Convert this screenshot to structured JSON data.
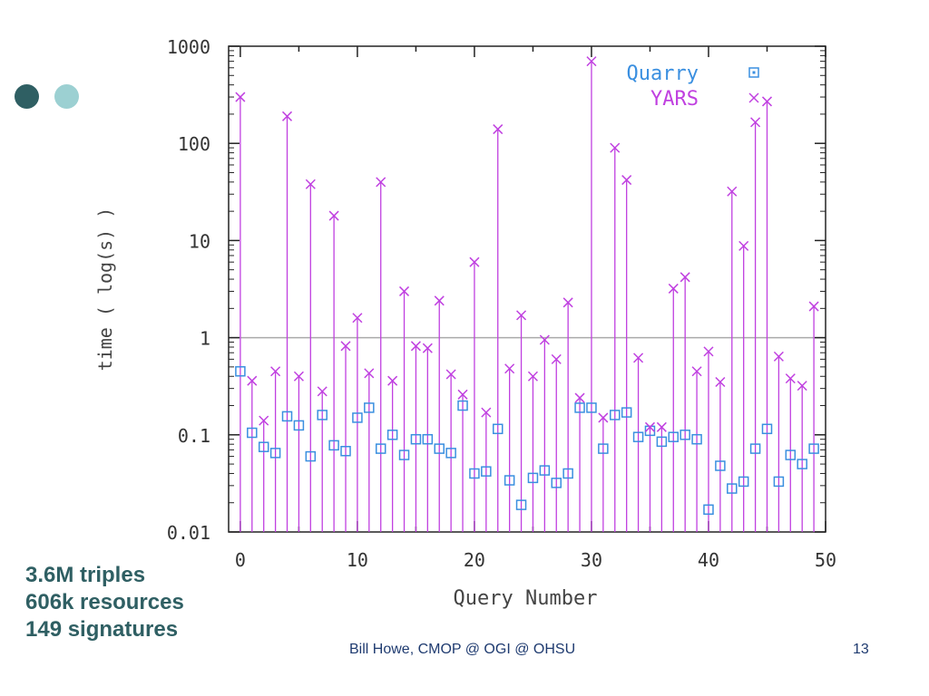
{
  "stats": [
    "3.6M triples",
    "606k resources",
    "149 signatures"
  ],
  "footer": {
    "text": "Bill Howe, CMOP @ OGI @ OHSU",
    "page": "13"
  },
  "colors": {
    "quarry": "#3a8fe0",
    "yars": "#c040e0",
    "accent_dark": "#2f5f63",
    "accent_light": "#9cd0d2"
  },
  "chart_data": {
    "type": "scatter",
    "xlabel": "Query Number",
    "ylabel": "time ( log(s) )",
    "xlim": [
      -1,
      50
    ],
    "ylim": [
      0.01,
      1000
    ],
    "yscale": "log",
    "xticks": [
      0,
      10,
      20,
      30,
      40,
      50
    ],
    "xtick_labels": [
      "0",
      "10",
      "20",
      "30",
      "40",
      "50"
    ],
    "yticks": [
      0.01,
      0.1,
      1,
      10,
      100,
      1000
    ],
    "ytick_labels": [
      "0.01",
      "0.1",
      "1",
      "10",
      "100",
      "1000"
    ],
    "reference_line": 1,
    "legend_position": "top-right",
    "series": [
      {
        "name": "Quarry",
        "marker": "square",
        "color": "#3a8fe0",
        "values": [
          0.45,
          0.105,
          0.075,
          0.065,
          0.155,
          0.125,
          0.06,
          0.16,
          0.078,
          0.068,
          0.15,
          0.19,
          0.072,
          0.1,
          0.062,
          0.09,
          0.09,
          0.072,
          0.065,
          0.2,
          0.04,
          0.042,
          0.115,
          0.034,
          0.019,
          0.036,
          0.043,
          0.032,
          0.04,
          0.19,
          0.19,
          0.072,
          0.16,
          0.17,
          0.095,
          0.11,
          0.085,
          0.095,
          0.1,
          0.09,
          0.017,
          0.048,
          0.028,
          0.033,
          0.072,
          0.115,
          0.033,
          0.062,
          0.05,
          0.072
        ]
      },
      {
        "name": "YARS",
        "marker": "x",
        "color": "#c040e0",
        "stems": true,
        "values": [
          300,
          0.36,
          0.14,
          0.45,
          190,
          0.4,
          38,
          0.28,
          18,
          0.82,
          1.6,
          0.43,
          40,
          0.36,
          3,
          0.82,
          0.78,
          2.4,
          0.42,
          0.26,
          6,
          0.17,
          140,
          0.48,
          1.7,
          0.4,
          0.95,
          0.6,
          2.3,
          0.24,
          700,
          0.15,
          90,
          42,
          0.62,
          0.12,
          0.12,
          3.2,
          4.2,
          0.45,
          0.72,
          0.35,
          32,
          8.8,
          165,
          270,
          0.64,
          0.38,
          0.32,
          2.1
        ]
      }
    ]
  }
}
